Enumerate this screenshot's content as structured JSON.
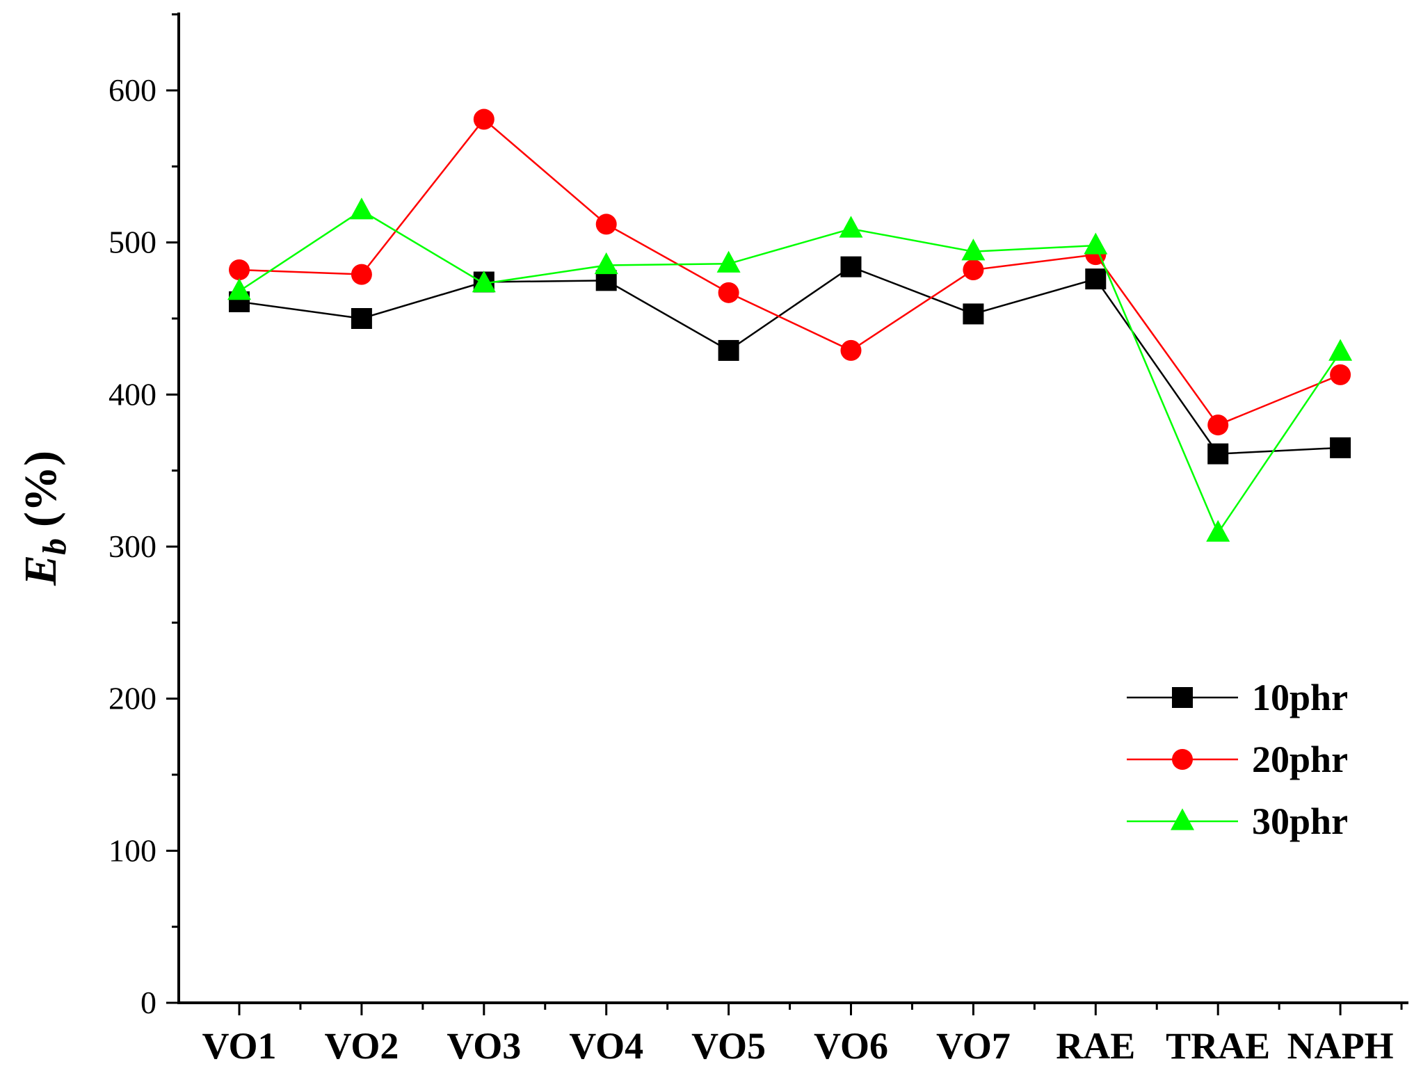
{
  "chart_data": {
    "type": "line",
    "title": "",
    "xlabel": "",
    "ylabel": {
      "main": "E",
      "subscript": "b",
      "unit": "(%)"
    },
    "ylim": [
      0,
      650
    ],
    "yticks": [
      0,
      100,
      200,
      300,
      400,
      500,
      600
    ],
    "categories": [
      "VO1",
      "VO2",
      "VO3",
      "VO4",
      "VO5",
      "VO6",
      "VO7",
      "RAE",
      "TRAE",
      "NAPH"
    ],
    "series": [
      {
        "name": "10phr",
        "color": "#000000",
        "marker": "square",
        "values": [
          461,
          450,
          474,
          475,
          429,
          484,
          453,
          476,
          361,
          365
        ]
      },
      {
        "name": "20phr",
        "color": "#ff0000",
        "marker": "circle",
        "values": [
          482,
          479,
          581,
          512,
          467,
          429,
          482,
          492,
          380,
          413
        ]
      },
      {
        "name": "30phr",
        "color": "#00ff00",
        "marker": "triangle",
        "values": [
          468,
          521,
          473,
          485,
          486,
          509,
          494,
          498,
          309,
          428
        ]
      }
    ],
    "legend_position": "right-middle",
    "grid": false
  }
}
